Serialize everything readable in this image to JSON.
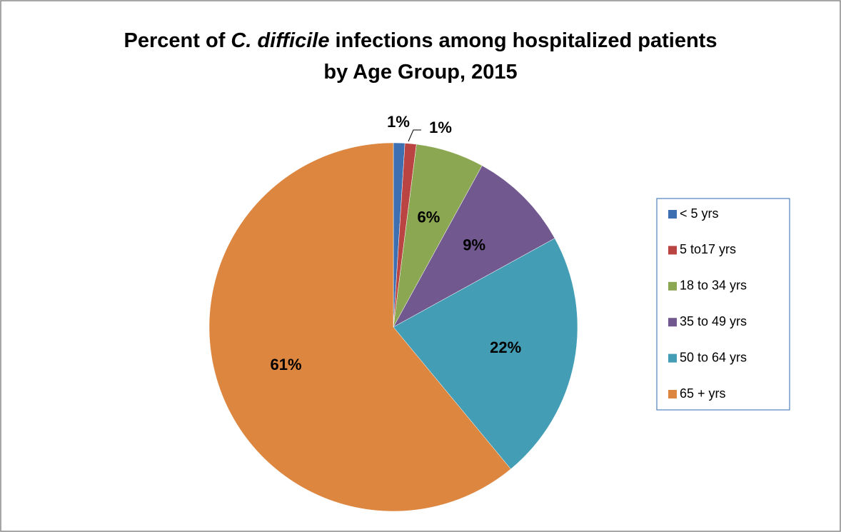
{
  "chart_data": {
    "type": "pie",
    "title": [
      [
        "Percent of ",
        "C. difficile",
        " infections among hospitalized patients"
      ],
      [
        "by Age Group, 2015"
      ]
    ],
    "categories": [
      "< 5 yrs",
      "5 to17 yrs",
      "18 to 34 yrs",
      "35 to 49 yrs",
      "50 to 64 yrs",
      "65 + yrs"
    ],
    "values": [
      1,
      1,
      6,
      9,
      22,
      61
    ],
    "value_labels": [
      "1%",
      "1%",
      "6%",
      "9%",
      "22%",
      "61%"
    ],
    "colors": [
      "#3e6fb0",
      "#b94441",
      "#8ba752",
      "#71598f",
      "#439db4",
      "#dd8640"
    ],
    "legend": "right"
  }
}
